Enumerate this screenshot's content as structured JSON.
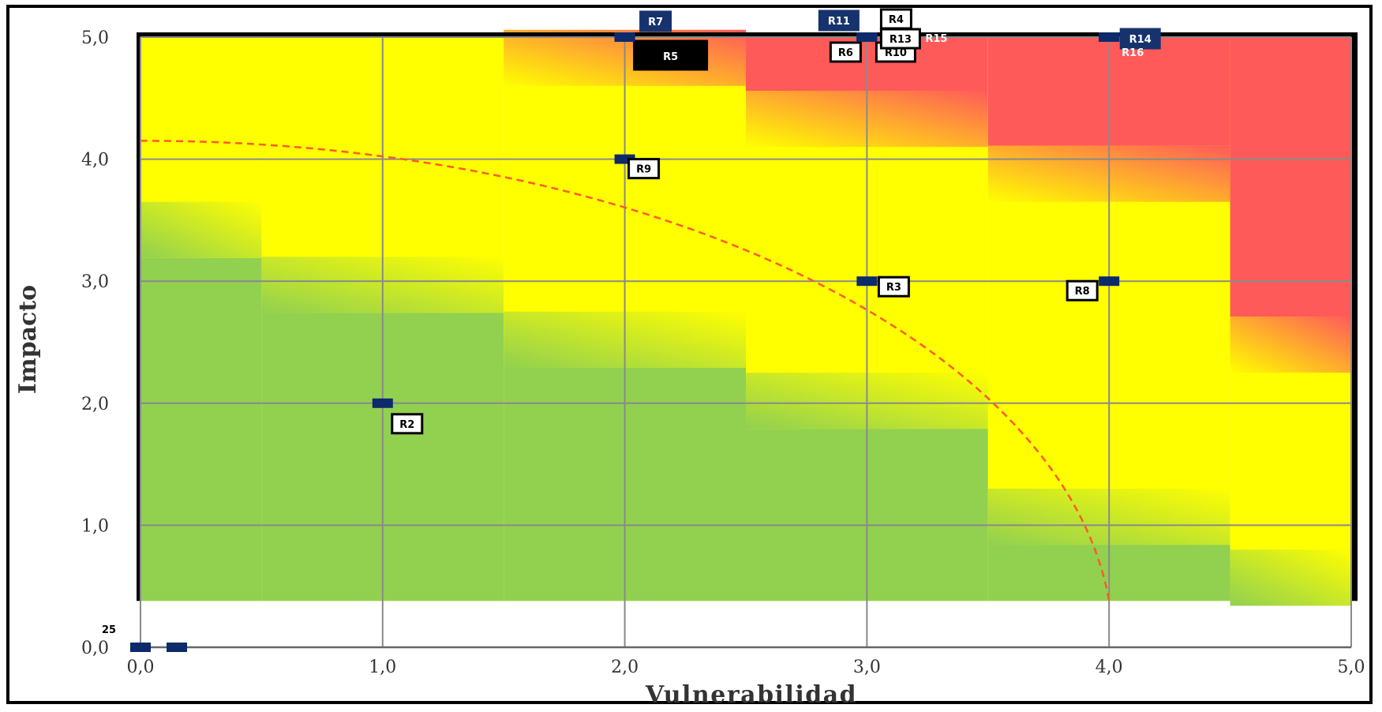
{
  "chart_data": {
    "type": "scatter",
    "title": "",
    "xlabel": "Vulnerabilidad",
    "ylabel": "Impacto",
    "xlim": [
      0,
      5
    ],
    "ylim": [
      0,
      5
    ],
    "x_ticks": [
      "0,0",
      "1,0",
      "2,0",
      "3,0",
      "4,0",
      "5,0"
    ],
    "y_ticks": [
      "0,0",
      "1,0",
      "2,0",
      "3,0",
      "4,0",
      "5,0"
    ],
    "grid": true,
    "zone_colors": {
      "low": "#92d050",
      "medium": "#ffff00",
      "high": "#ff5a5a"
    },
    "threshold_curve": {
      "style": "dashed",
      "color": "#ff5a2a",
      "x_at_y0": 4.0,
      "y_at_x0": 4.15
    },
    "points": [
      {
        "label": "R2",
        "x": 1.0,
        "y": 2.0
      },
      {
        "label": "R3",
        "x": 3.0,
        "y": 3.0
      },
      {
        "label": "R4",
        "x": 3.0,
        "y": 5.0
      },
      {
        "label": "R5",
        "x": 2.0,
        "y": 5.0
      },
      {
        "label": "R6",
        "x": 3.0,
        "y": 5.0
      },
      {
        "label": "R7",
        "x": 2.0,
        "y": 5.0
      },
      {
        "label": "R8",
        "x": 4.0,
        "y": 3.0
      },
      {
        "label": "R9",
        "x": 2.0,
        "y": 4.0
      },
      {
        "label": "R10",
        "x": 3.0,
        "y": 5.0
      },
      {
        "label": "R11",
        "x": 3.0,
        "y": 5.0
      },
      {
        "label": "R13",
        "x": 3.0,
        "y": 5.0
      },
      {
        "label": "R14",
        "x": 4.0,
        "y": 5.0
      },
      {
        "label": "R15",
        "x": 3.0,
        "y": 5.0
      },
      {
        "label": "R16",
        "x": 4.0,
        "y": 5.0
      },
      {
        "label": "25",
        "x": 0.0,
        "y": 0.0
      },
      {
        "label": "",
        "x": 0.15,
        "y": 0.0
      }
    ]
  }
}
